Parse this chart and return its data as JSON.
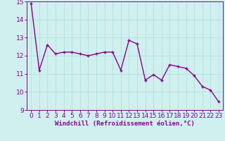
{
  "x": [
    0,
    1,
    2,
    3,
    4,
    5,
    6,
    7,
    8,
    9,
    10,
    11,
    12,
    13,
    14,
    15,
    16,
    17,
    18,
    19,
    20,
    21,
    22,
    23
  ],
  "y": [
    14.9,
    11.2,
    12.6,
    12.1,
    12.2,
    12.2,
    12.1,
    12.0,
    12.1,
    12.2,
    12.2,
    11.2,
    12.85,
    12.65,
    10.65,
    10.95,
    10.65,
    11.5,
    11.4,
    11.3,
    10.9,
    10.3,
    10.1,
    9.45
  ],
  "line_color": "#8B008B",
  "marker": "+",
  "background_color": "#cff0ee",
  "grid_color": "#aadddd",
  "xlabel": "Windchill (Refroidissement éolien,°C)",
  "ylim": [
    9,
    15
  ],
  "xlim": [
    -0.5,
    23.5
  ],
  "yticks": [
    9,
    10,
    11,
    12,
    13,
    14,
    15
  ],
  "xticks": [
    0,
    1,
    2,
    3,
    4,
    5,
    6,
    7,
    8,
    9,
    10,
    11,
    12,
    13,
    14,
    15,
    16,
    17,
    18,
    19,
    20,
    21,
    22,
    23
  ],
  "tick_color": "#8B008B",
  "xlabel_color": "#8B008B",
  "xlabel_fontsize": 6.5,
  "tick_fontsize": 6.5,
  "linewidth": 1.0,
  "markersize": 3.5,
  "markeredgewidth": 1.0
}
